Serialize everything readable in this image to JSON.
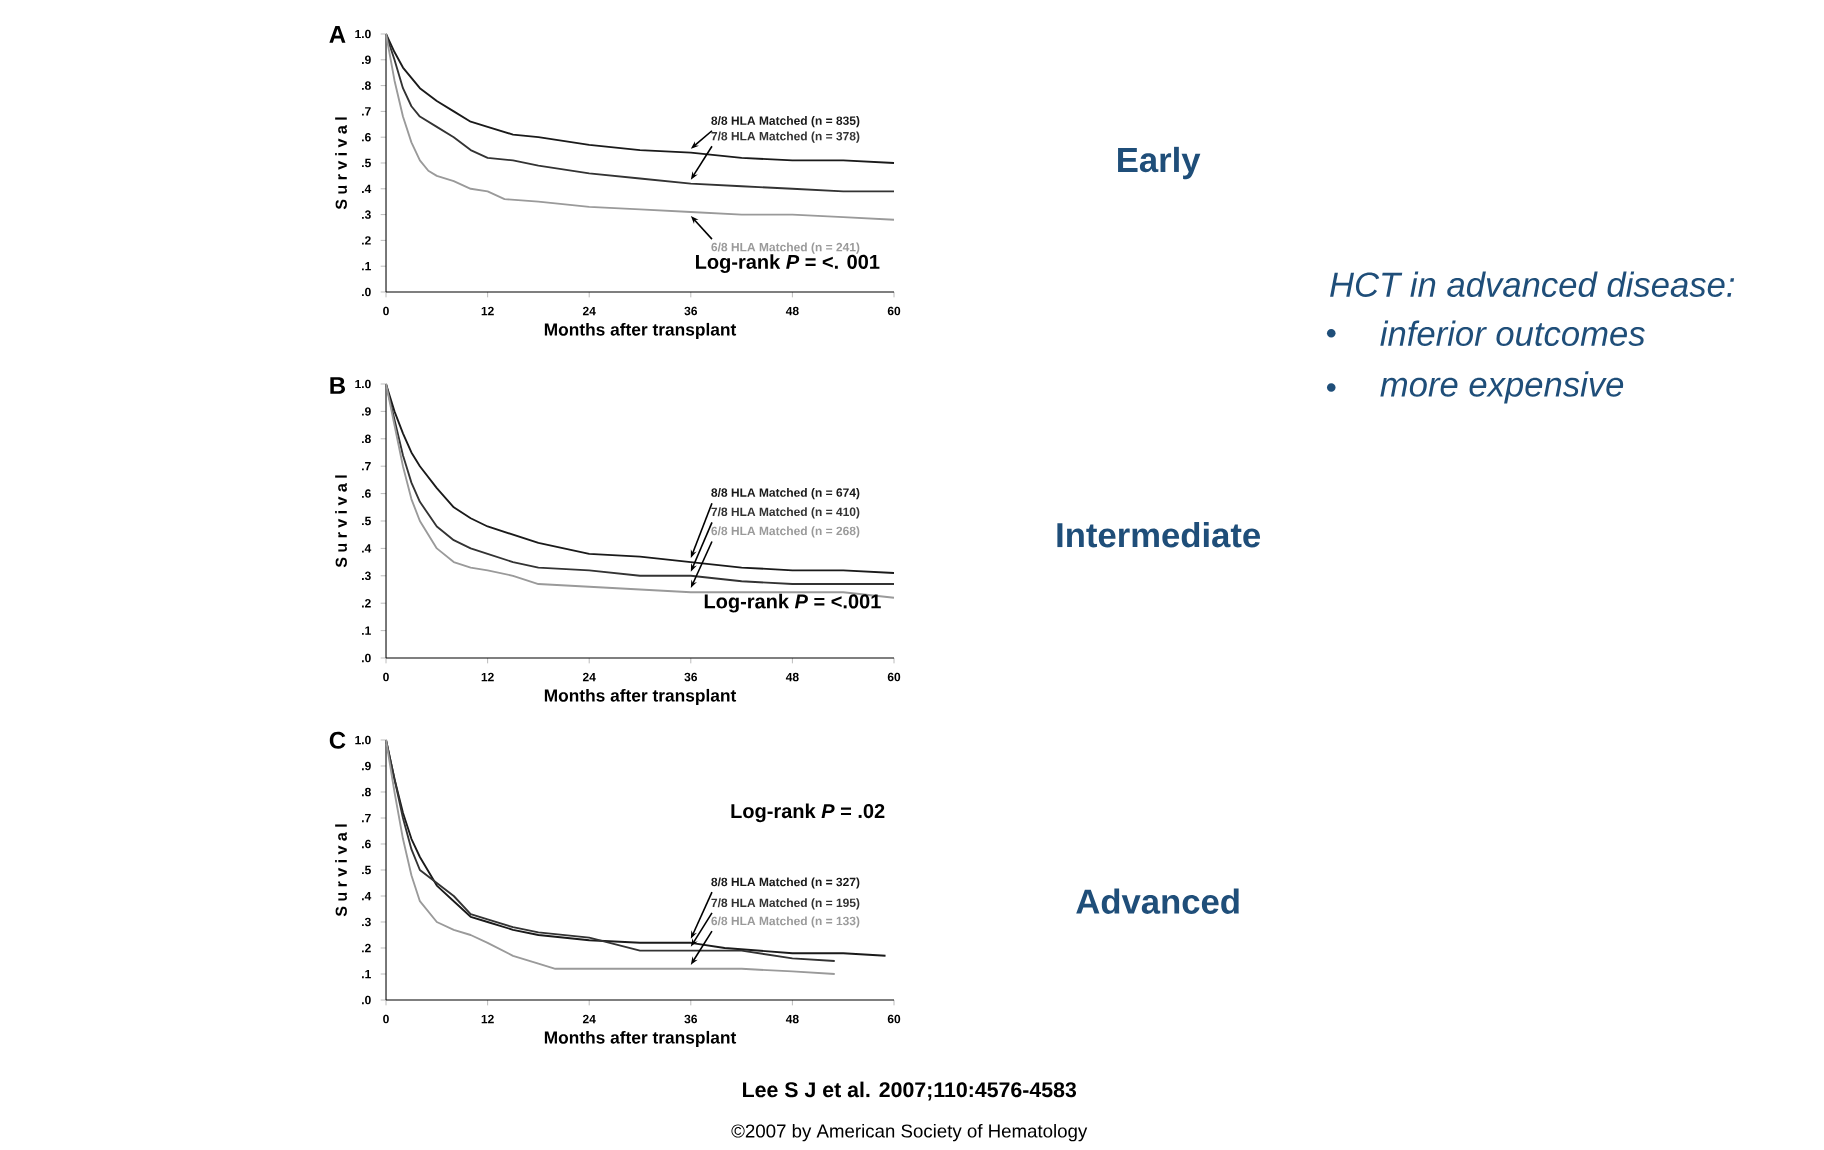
{
  "chart_data": [
    {
      "type": "line",
      "title": "A",
      "xlabel": "Months after transplant",
      "ylabel": "S u r v i v a l",
      "xlim": [
        0,
        60
      ],
      "ylim": [
        0,
        1
      ],
      "xticks": [
        0,
        12,
        24,
        36,
        48,
        60
      ],
      "yticks": [
        {
          "value": 0,
          "label": ".0"
        },
        {
          "value": 0.1,
          "label": ".1"
        },
        {
          "value": 0.2,
          "label": ".2"
        },
        {
          "value": 0.3,
          "label": ".3"
        },
        {
          "value": 0.4,
          "label": ".4"
        },
        {
          "value": 0.5,
          "label": ".5"
        },
        {
          "value": 0.6,
          "label": ".6"
        },
        {
          "value": 0.7,
          "label": ".7"
        },
        {
          "value": 0.8,
          "label": ".8"
        },
        {
          "value": 0.9,
          "label": ".9"
        },
        {
          "value": 1,
          "label": "1.0"
        }
      ],
      "annotations": [
        "Early",
        "Log-rank *P* = <. 001",
        "HCT in advanced disease:",
        "inferior outcomes",
        "more expensive"
      ],
      "series": [
        {
          "name": "8/8 HLA Matched (n = 835)",
          "color": "#1a1a1a",
          "x": [
            0,
            1,
            2,
            3,
            4,
            6,
            8,
            10,
            12,
            15,
            18,
            24,
            30,
            36,
            42,
            48,
            54,
            60
          ],
          "values": [
            1.0,
            0.93,
            0.87,
            0.83,
            0.79,
            0.74,
            0.7,
            0.66,
            0.64,
            0.61,
            0.6,
            0.57,
            0.55,
            0.54,
            0.52,
            0.51,
            0.51,
            0.5
          ]
        },
        {
          "name": "7/8 HLA Matched (n = 378)",
          "color": "#333333",
          "x": [
            0,
            1,
            2,
            3,
            4,
            6,
            8,
            10,
            12,
            15,
            18,
            24,
            30,
            36,
            42,
            48,
            54,
            60
          ],
          "values": [
            1.0,
            0.9,
            0.79,
            0.72,
            0.68,
            0.64,
            0.6,
            0.55,
            0.52,
            0.51,
            0.49,
            0.46,
            0.44,
            0.42,
            0.41,
            0.4,
            0.39,
            0.39
          ]
        },
        {
          "name": "6/8 HLA Matched (n = 241)",
          "color": "#9a9a9a",
          "x": [
            0,
            1,
            2,
            3,
            4,
            5,
            6,
            8,
            10,
            12,
            14,
            18,
            24,
            30,
            36,
            42,
            48,
            54,
            60
          ],
          "values": [
            1.0,
            0.82,
            0.68,
            0.58,
            0.51,
            0.47,
            0.45,
            0.43,
            0.4,
            0.39,
            0.36,
            0.35,
            0.33,
            0.32,
            0.31,
            0.3,
            0.3,
            0.29,
            0.28
          ]
        }
      ]
    },
    {
      "type": "line",
      "title": "B",
      "xlabel": "Months after transplant",
      "ylabel": "S u r v i v a l",
      "xlim": [
        0,
        60
      ],
      "ylim": [
        0,
        1
      ],
      "xticks": [
        0,
        12,
        24,
        36,
        48,
        60
      ],
      "yticks": [
        {
          "value": 0,
          "label": ".0"
        },
        {
          "value": 0.1,
          "label": ".1"
        },
        {
          "value": 0.2,
          "label": ".2"
        },
        {
          "value": 0.3,
          "label": ".3"
        },
        {
          "value": 0.4,
          "label": ".4"
        },
        {
          "value": 0.5,
          "label": ".5"
        },
        {
          "value": 0.6,
          "label": ".6"
        },
        {
          "value": 0.7,
          "label": ".7"
        },
        {
          "value": 0.8,
          "label": ".8"
        },
        {
          "value": 0.9,
          "label": ".9"
        },
        {
          "value": 1,
          "label": "1.0"
        }
      ],
      "annotations": [
        "Intermediate",
        "Log-rank *P* = <.001"
      ],
      "series": [
        {
          "name": "8/8 HLA Matched (n = 674)",
          "color": "#1a1a1a",
          "x": [
            0,
            1,
            2,
            3,
            4,
            6,
            8,
            10,
            12,
            15,
            18,
            24,
            30,
            36,
            42,
            48,
            54,
            60
          ],
          "values": [
            1.0,
            0.9,
            0.82,
            0.75,
            0.7,
            0.62,
            0.55,
            0.51,
            0.48,
            0.45,
            0.42,
            0.38,
            0.37,
            0.35,
            0.33,
            0.32,
            0.32,
            0.31
          ]
        },
        {
          "name": "7/8 HLA Matched (n = 410)",
          "color": "#333333",
          "x": [
            0,
            1,
            2,
            3,
            4,
            6,
            8,
            10,
            12,
            15,
            18,
            24,
            30,
            36,
            42,
            48,
            54,
            60
          ],
          "values": [
            1.0,
            0.87,
            0.74,
            0.64,
            0.57,
            0.48,
            0.43,
            0.4,
            0.38,
            0.35,
            0.33,
            0.32,
            0.3,
            0.3,
            0.28,
            0.27,
            0.27,
            0.27
          ]
        },
        {
          "name": "6/8 HLA Matched (n = 268)",
          "color": "#9a9a9a",
          "x": [
            0,
            1,
            2,
            3,
            4,
            6,
            8,
            10,
            12,
            15,
            18,
            24,
            30,
            36,
            42,
            48,
            54,
            60
          ],
          "values": [
            1.0,
            0.85,
            0.7,
            0.58,
            0.5,
            0.4,
            0.35,
            0.33,
            0.32,
            0.3,
            0.27,
            0.26,
            0.25,
            0.24,
            0.24,
            0.24,
            0.24,
            0.22
          ]
        }
      ]
    },
    {
      "type": "line",
      "title": "C",
      "xlabel": "Months after transplant",
      "ylabel": "S u r v i v a l",
      "xlim": [
        0,
        60
      ],
      "ylim": [
        0,
        1
      ],
      "xticks": [
        0,
        12,
        24,
        36,
        48,
        60
      ],
      "yticks": [
        {
          "value": 0,
          "label": ".0"
        },
        {
          "value": 0.1,
          "label": ".1"
        },
        {
          "value": 0.2,
          "label": ".2"
        },
        {
          "value": 0.3,
          "label": ".3"
        },
        {
          "value": 0.4,
          "label": ".4"
        },
        {
          "value": 0.5,
          "label": ".5"
        },
        {
          "value": 0.6,
          "label": ".6"
        },
        {
          "value": 0.7,
          "label": ".7"
        },
        {
          "value": 0.8,
          "label": ".8"
        },
        {
          "value": 0.9,
          "label": ".9"
        },
        {
          "value": 1,
          "label": "1.0"
        }
      ],
      "annotations": [
        "Advanced",
        "Log-rank *P* = .02",
        "Lee S J et al. 2007;110:4576-4583",
        "©2007 by American Society of Hematology"
      ],
      "series": [
        {
          "name": "8/8 HLA Matched (n = 327)",
          "color": "#1a1a1a",
          "x": [
            0,
            1,
            2,
            3,
            4,
            6,
            8,
            10,
            12,
            15,
            18,
            24,
            30,
            36,
            40,
            44,
            48,
            54,
            59
          ],
          "values": [
            1.0,
            0.85,
            0.72,
            0.62,
            0.55,
            0.44,
            0.38,
            0.32,
            0.3,
            0.27,
            0.25,
            0.23,
            0.22,
            0.22,
            0.2,
            0.19,
            0.18,
            0.18,
            0.17
          ]
        },
        {
          "name": "7/8 HLA Matched (n = 195)",
          "color": "#333333",
          "x": [
            0,
            1,
            2,
            3,
            4,
            6,
            8,
            10,
            12,
            15,
            18,
            24,
            30,
            36,
            42,
            48,
            53
          ],
          "values": [
            1.0,
            0.85,
            0.7,
            0.58,
            0.5,
            0.45,
            0.4,
            0.33,
            0.31,
            0.28,
            0.26,
            0.24,
            0.19,
            0.19,
            0.19,
            0.16,
            0.15
          ]
        },
        {
          "name": "6/8 HLA Matched (n = 133)",
          "color": "#9a9a9a",
          "x": [
            0,
            1,
            2,
            3,
            4,
            6,
            8,
            10,
            12,
            15,
            18,
            20,
            24,
            36,
            42,
            48,
            53
          ],
          "values": [
            1.0,
            0.8,
            0.62,
            0.48,
            0.38,
            0.3,
            0.27,
            0.25,
            0.22,
            0.17,
            0.14,
            0.12,
            0.12,
            0.12,
            0.12,
            0.11,
            0.1
          ]
        }
      ]
    }
  ]
}
